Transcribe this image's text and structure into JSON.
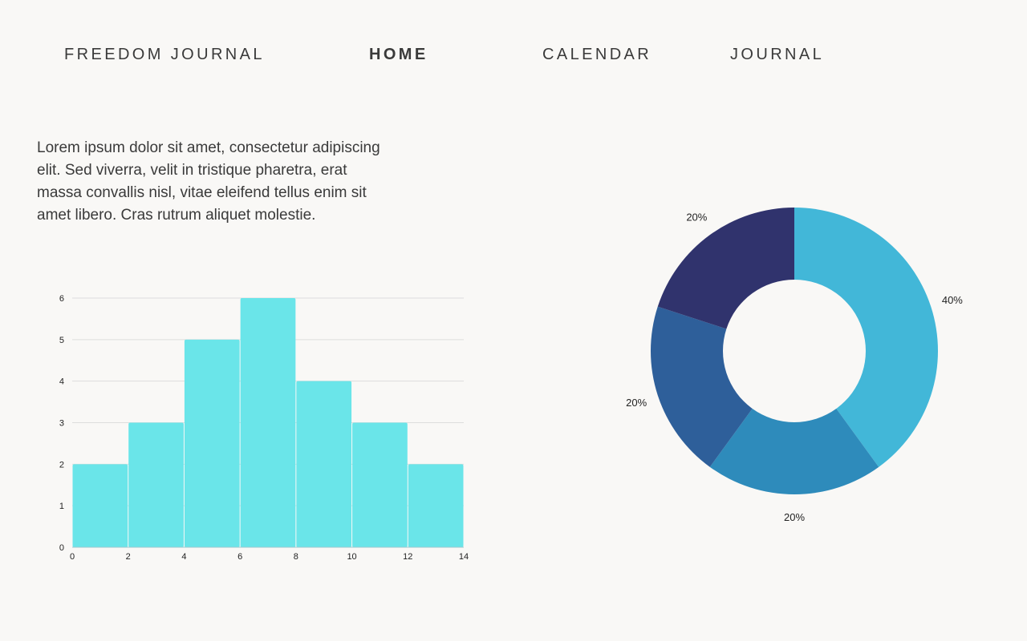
{
  "nav": {
    "brand": "FREEDOM JOURNAL",
    "home": "HOME",
    "calendar": "CALENDAR",
    "journal": "JOURNAL"
  },
  "intro_text": "Lorem ipsum dolor sit amet, consectetur adipiscing elit. Sed viverra, velit in tristique pharetra, erat massa convallis nisl, vitae eleifend tellus enim sit amet libero. Cras rutrum aliquet molestie.",
  "colors": {
    "histogram_bar": "#6ae5e9",
    "gridline": "#dddddd",
    "donut": [
      "#42b7d8",
      "#2e8bbb",
      "#2e5f9a",
      "#30336d"
    ]
  },
  "chart_data": [
    {
      "type": "bar",
      "bins": [
        [
          0,
          2
        ],
        [
          2,
          4
        ],
        [
          4,
          6
        ],
        [
          6,
          8
        ],
        [
          8,
          10
        ],
        [
          10,
          12
        ],
        [
          12,
          14
        ]
      ],
      "values": [
        2,
        3,
        5,
        6,
        4,
        3,
        2
      ],
      "xlim": [
        0,
        14
      ],
      "ylim": [
        0,
        6
      ],
      "xticks": [
        "0",
        "2",
        "4",
        "6",
        "8",
        "10",
        "12",
        "14"
      ],
      "yticks": [
        "0",
        "1",
        "2",
        "3",
        "4",
        "5",
        "6"
      ],
      "grid": true,
      "title": "",
      "xlabel": "",
      "ylabel": ""
    },
    {
      "type": "pie",
      "donut": true,
      "values": [
        40,
        20,
        20,
        20
      ],
      "labels": [
        "40%",
        "20%",
        "20%",
        "20%"
      ],
      "title": ""
    }
  ]
}
